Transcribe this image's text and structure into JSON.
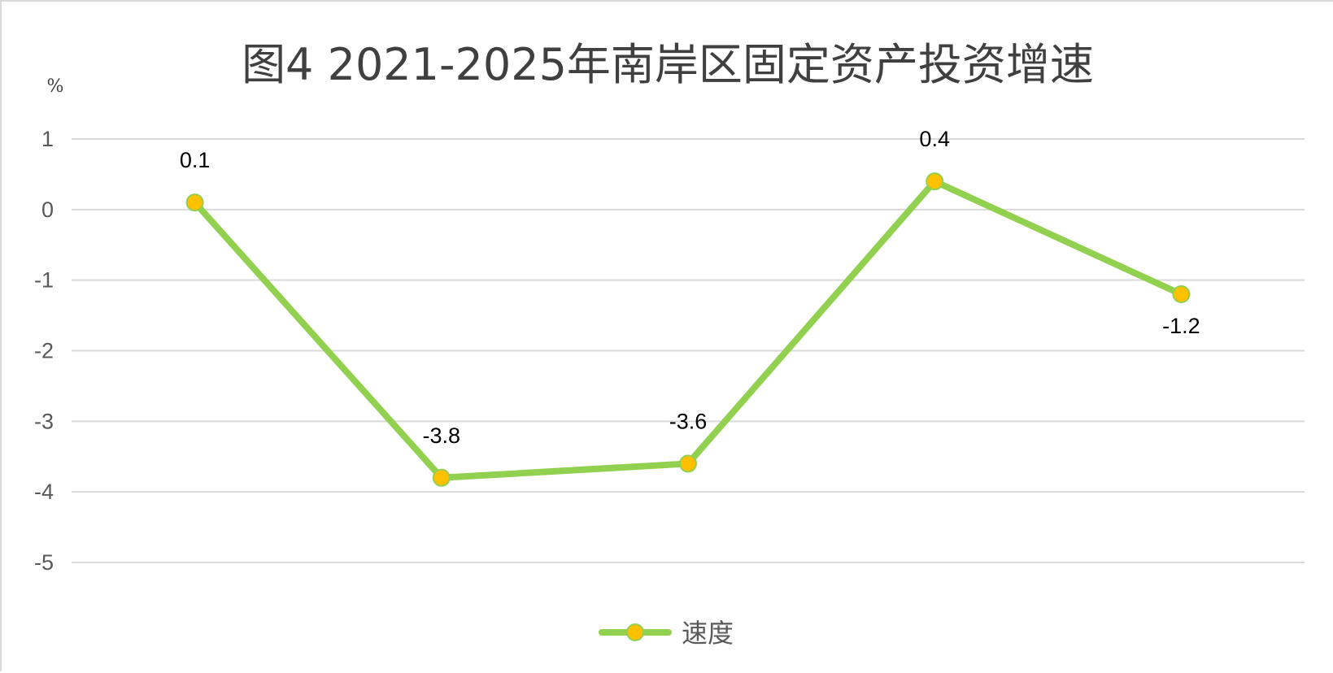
{
  "chart_data": {
    "type": "line",
    "title": "图4  2021-2025年南岸区固定资产投资增速",
    "ylabel": "%",
    "ylim": [
      -5,
      1
    ],
    "yticks": [
      1,
      0,
      -1,
      -2,
      -3,
      -4,
      -5
    ],
    "grid": true,
    "legend_position": "bottom",
    "categories": [
      "",
      "",
      "",
      "",
      ""
    ],
    "series": [
      {
        "name": "速度",
        "values": [
          0.1,
          -3.8,
          -3.6,
          0.4,
          -1.2
        ],
        "labels": [
          "0.1",
          "-3.8",
          "-3.6",
          "0.4",
          "-1.2"
        ],
        "label_position": [
          "above",
          "above",
          "above",
          "above",
          "below"
        ],
        "line_color": "#92d050",
        "marker_color": "#ffc000"
      }
    ]
  }
}
